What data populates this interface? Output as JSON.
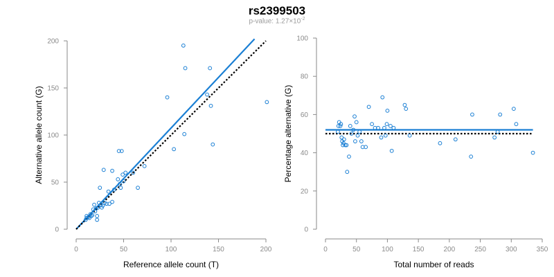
{
  "header": {
    "title": "rs2399503",
    "subtitle_prefix": "p-value: 1.27",
    "subtitle_times": "×10",
    "subtitle_exponent": "-2"
  },
  "colors": {
    "point": "#1a7fd4",
    "fit_line": "#1a7fd4",
    "reference_line": "#000000",
    "axis": "#8a8a8a"
  },
  "chart_data": [
    {
      "type": "scatter",
      "title": "",
      "xlabel": "Reference allele count (T)",
      "ylabel": "Alternative allele count (G)",
      "xlim": [
        0,
        200
      ],
      "ylim": [
        0,
        200
      ],
      "xticks": [
        0,
        50,
        100,
        150,
        200
      ],
      "yticks": [
        0,
        50,
        100,
        150,
        200
      ],
      "grid": false,
      "points": [
        [
          10,
          10
        ],
        [
          11,
          12
        ],
        [
          11,
          14
        ],
        [
          13,
          13
        ],
        [
          14,
          12
        ],
        [
          15,
          16
        ],
        [
          16,
          14
        ],
        [
          17,
          15
        ],
        [
          18,
          21
        ],
        [
          19,
          26
        ],
        [
          20,
          19
        ],
        [
          21,
          22
        ],
        [
          22,
          14
        ],
        [
          22,
          10
        ],
        [
          23,
          23
        ],
        [
          24,
          28
        ],
        [
          25,
          44
        ],
        [
          26,
          26
        ],
        [
          27,
          23
        ],
        [
          28,
          25
        ],
        [
          29,
          63
        ],
        [
          30,
          28
        ],
        [
          32,
          27
        ],
        [
          34,
          40
        ],
        [
          35,
          27
        ],
        [
          38,
          62
        ],
        [
          38,
          29
        ],
        [
          40,
          42
        ],
        [
          44,
          53
        ],
        [
          45,
          83
        ],
        [
          46,
          48
        ],
        [
          47,
          44
        ],
        [
          48,
          83
        ],
        [
          49,
          58
        ],
        [
          50,
          51
        ],
        [
          52,
          60
        ],
        [
          60,
          60
        ],
        [
          65,
          44
        ],
        [
          72,
          67
        ],
        [
          96,
          140
        ],
        [
          103,
          85
        ],
        [
          113,
          195
        ],
        [
          114,
          101
        ],
        [
          115,
          171
        ],
        [
          138,
          143
        ],
        [
          141,
          171
        ],
        [
          142,
          131
        ],
        [
          144,
          90
        ],
        [
          201,
          135
        ]
      ],
      "lines": [
        {
          "role": "fit",
          "style": "solid",
          "x": [
            0,
            188
          ],
          "y": [
            0,
            202
          ]
        },
        {
          "role": "reference",
          "style": "dotted",
          "x": [
            0,
            200
          ],
          "y": [
            0,
            200
          ]
        }
      ]
    },
    {
      "type": "scatter",
      "title": "",
      "xlabel": "Total number of reads",
      "ylabel": "Percentage alternative (G)",
      "xlim": [
        0,
        350
      ],
      "ylim": [
        0,
        100
      ],
      "xticks": [
        0,
        50,
        100,
        150,
        200,
        250,
        300,
        350
      ],
      "yticks": [
        0,
        20,
        40,
        60,
        80,
        100
      ],
      "grid": false,
      "points": [
        [
          20,
          51
        ],
        [
          21,
          54
        ],
        [
          22,
          56
        ],
        [
          24,
          54
        ],
        [
          25,
          55
        ],
        [
          26,
          48
        ],
        [
          27,
          46
        ],
        [
          28,
          44
        ],
        [
          29,
          45
        ],
        [
          30,
          47
        ],
        [
          32,
          44
        ],
        [
          34,
          44
        ],
        [
          35,
          30
        ],
        [
          38,
          38
        ],
        [
          40,
          54
        ],
        [
          42,
          50
        ],
        [
          45,
          52
        ],
        [
          47,
          59
        ],
        [
          48,
          46
        ],
        [
          50,
          56
        ],
        [
          52,
          49
        ],
        [
          55,
          51
        ],
        [
          58,
          46
        ],
        [
          60,
          43
        ],
        [
          65,
          43
        ],
        [
          70,
          64
        ],
        [
          75,
          55
        ],
        [
          80,
          53
        ],
        [
          85,
          53
        ],
        [
          90,
          48
        ],
        [
          92,
          69
        ],
        [
          95,
          53
        ],
        [
          97,
          49
        ],
        [
          99,
          55
        ],
        [
          100,
          62
        ],
        [
          105,
          54
        ],
        [
          107,
          41
        ],
        [
          110,
          53
        ],
        [
          128,
          65
        ],
        [
          130,
          63
        ],
        [
          136,
          49
        ],
        [
          185,
          45
        ],
        [
          210,
          47
        ],
        [
          235,
          38
        ],
        [
          237,
          60
        ],
        [
          273,
          48
        ],
        [
          278,
          51
        ],
        [
          282,
          60
        ],
        [
          304,
          63
        ],
        [
          308,
          55
        ],
        [
          335,
          40
        ]
      ],
      "lines": [
        {
          "role": "fit",
          "style": "solid",
          "x": [
            0,
            335
          ],
          "y": [
            52,
            52
          ]
        },
        {
          "role": "reference",
          "style": "dotted",
          "x": [
            0,
            335
          ],
          "y": [
            50,
            50
          ]
        }
      ]
    }
  ]
}
